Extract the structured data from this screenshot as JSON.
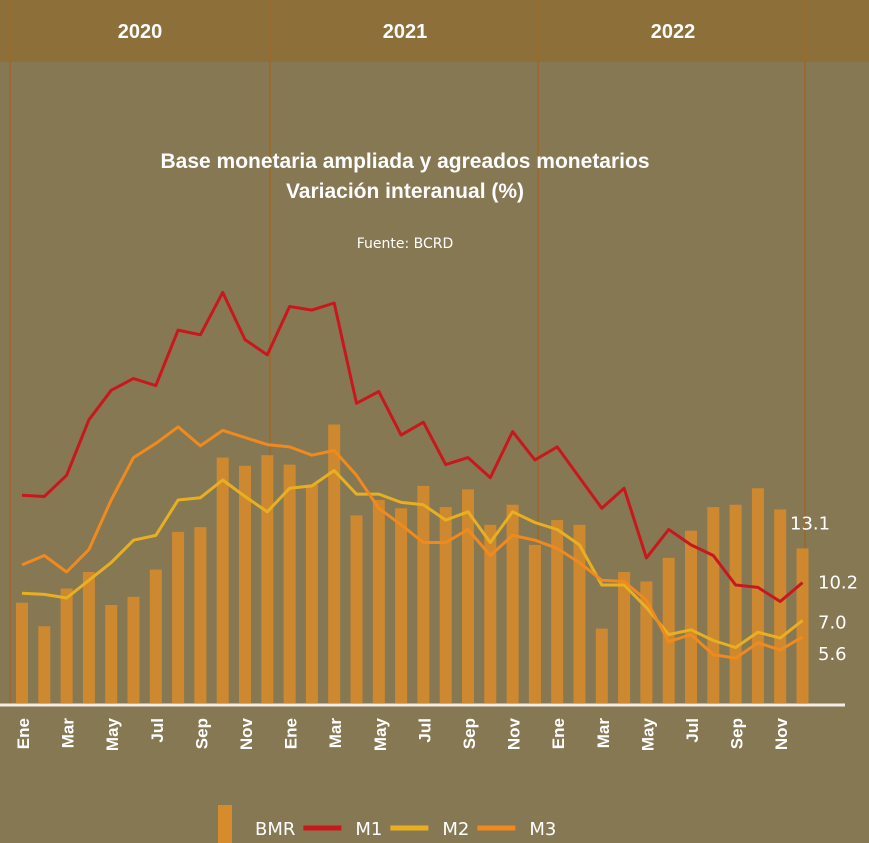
{
  "chart_data": {
    "type": "bar",
    "title": "Base monetaria ampliada y agreados monetarios",
    "subtitle": "Variación interanual (%)",
    "source": "Fuente: BCRD",
    "x_groups": [
      "2020",
      "2021",
      "2022"
    ],
    "categories": [
      "Ene",
      null,
      "Mar",
      null,
      "May",
      null,
      "Jul",
      null,
      "Sep",
      null,
      "Nov",
      null,
      "Ene",
      null,
      "Mar",
      null,
      "May",
      null,
      "Jul",
      null,
      "Sep",
      null,
      "Nov",
      null,
      "Ene",
      null,
      "Mar",
      null,
      "May",
      null,
      "Jul",
      null,
      "Sep",
      null,
      "Nov",
      null
    ],
    "series": [
      {
        "name": "BMR",
        "type": "bar",
        "color": "#d68b2c",
        "values": [
          8.5,
          6.5,
          9.7,
          11.1,
          8.3,
          9.0,
          11.3,
          14.5,
          14.9,
          20.8,
          20.1,
          21.0,
          20.2,
          18.5,
          23.6,
          15.9,
          17.2,
          16.5,
          18.4,
          16.6,
          18.1,
          15.1,
          16.8,
          13.4,
          15.5,
          15.1,
          6.3,
          11.1,
          10.3,
          12.3,
          14.6,
          16.6,
          16.8,
          18.2,
          16.4,
          13.1
        ],
        "value_labels": [
          null,
          null,
          null,
          null,
          null,
          null,
          null,
          null,
          null,
          null,
          null,
          null,
          null,
          null,
          null,
          null,
          null,
          null,
          null,
          null,
          null,
          null,
          null,
          null,
          null,
          null,
          null,
          null,
          null,
          null,
          null,
          null,
          null,
          null,
          null,
          "13.1"
        ]
      },
      {
        "name": "M1",
        "type": "line",
        "color": "#c8181e",
        "values": [
          17.6,
          17.5,
          19.3,
          24.0,
          26.5,
          27.5,
          26.9,
          31.6,
          31.2,
          34.8,
          30.8,
          29.5,
          33.6,
          33.3,
          33.9,
          25.4,
          26.4,
          22.7,
          23.8,
          20.2,
          20.8,
          19.1,
          23.0,
          20.6,
          21.7,
          19.1,
          16.5,
          18.2,
          12.3,
          14.7,
          13.4,
          12.5,
          10.0,
          9.8,
          8.6,
          10.2
        ],
        "value_labels": [
          null,
          null,
          null,
          null,
          null,
          null,
          null,
          null,
          null,
          null,
          null,
          null,
          null,
          null,
          null,
          null,
          null,
          null,
          null,
          null,
          null,
          null,
          null,
          null,
          null,
          null,
          null,
          null,
          null,
          null,
          null,
          null,
          null,
          null,
          null,
          "10.2"
        ]
      },
      {
        "name": "M2",
        "type": "line",
        "color": "#e8b020",
        "values": [
          9.3,
          9.2,
          8.9,
          10.4,
          11.9,
          13.8,
          14.2,
          17.2,
          17.4,
          18.9,
          17.5,
          16.2,
          18.2,
          18.4,
          19.7,
          17.7,
          17.7,
          17.0,
          16.8,
          15.5,
          16.2,
          13.6,
          16.2,
          15.3,
          14.7,
          13.4,
          10.0,
          10.0,
          8.1,
          5.8,
          6.2,
          5.3,
          4.7,
          6.0,
          5.5,
          7.0
        ],
        "value_labels": [
          null,
          null,
          null,
          null,
          null,
          null,
          null,
          null,
          null,
          null,
          null,
          null,
          null,
          null,
          null,
          null,
          null,
          null,
          null,
          null,
          null,
          null,
          null,
          null,
          null,
          null,
          null,
          null,
          null,
          null,
          null,
          null,
          null,
          null,
          null,
          "7.0"
        ]
      },
      {
        "name": "M3",
        "type": "line",
        "color": "#f08a1c",
        "values": [
          11.7,
          12.5,
          11.1,
          13.0,
          17.2,
          20.8,
          22.0,
          23.4,
          21.8,
          23.1,
          22.5,
          21.9,
          21.7,
          21.0,
          21.4,
          19.3,
          16.5,
          15.1,
          13.6,
          13.6,
          14.7,
          12.5,
          14.2,
          13.8,
          13.1,
          11.9,
          10.4,
          10.3,
          8.7,
          5.2,
          5.8,
          4.1,
          3.8,
          5.1,
          4.5,
          5.6
        ],
        "value_labels": [
          null,
          null,
          null,
          null,
          null,
          null,
          null,
          null,
          null,
          null,
          null,
          null,
          null,
          null,
          null,
          null,
          null,
          null,
          null,
          null,
          null,
          null,
          null,
          null,
          null,
          null,
          null,
          null,
          null,
          null,
          null,
          null,
          null,
          null,
          null,
          "5.6"
        ]
      }
    ]
  }
}
